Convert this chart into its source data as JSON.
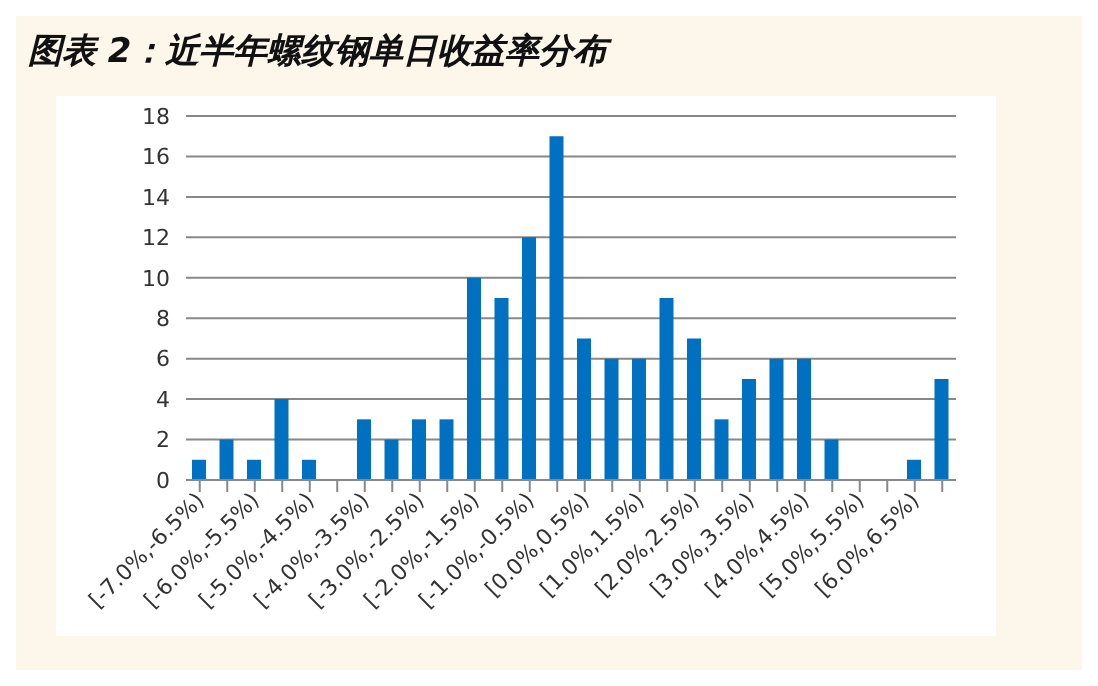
{
  "chart_data": {
    "type": "bar",
    "title": "图表 2：近半年螺纹钢单日收益率分布",
    "categories": [
      "[-7.0%,-6.5%)",
      null,
      "[-6.0%,-5.5%)",
      null,
      "[-5.0%,-4.5%)",
      null,
      "[-4.0%,-3.5%)",
      null,
      "[-3.0%,-2.5%)",
      null,
      "[-2.0%,-1.5%)",
      null,
      "[-1.0%,-0.5%)",
      null,
      "[0.0%,0.5%)",
      null,
      "[1.0%,1.5%)",
      null,
      "[2.0%,2.5%)",
      null,
      "[3.0%,3.5%)",
      null,
      "[4.0%,4.5%)",
      null,
      "[5.0%,5.5%)",
      null,
      "[6.0%,6.5%)",
      null
    ],
    "values": [
      1,
      2,
      1,
      4,
      1,
      0,
      3,
      2,
      3,
      3,
      10,
      9,
      12,
      17,
      7,
      6,
      6,
      9,
      7,
      3,
      5,
      6,
      6,
      2,
      0,
      0,
      1,
      5
    ],
    "color": "#0070c0",
    "ylim": [
      0,
      18
    ],
    "yticks": [
      0,
      2,
      4,
      6,
      8,
      10,
      12,
      14,
      16,
      18
    ],
    "grid": "y"
  }
}
